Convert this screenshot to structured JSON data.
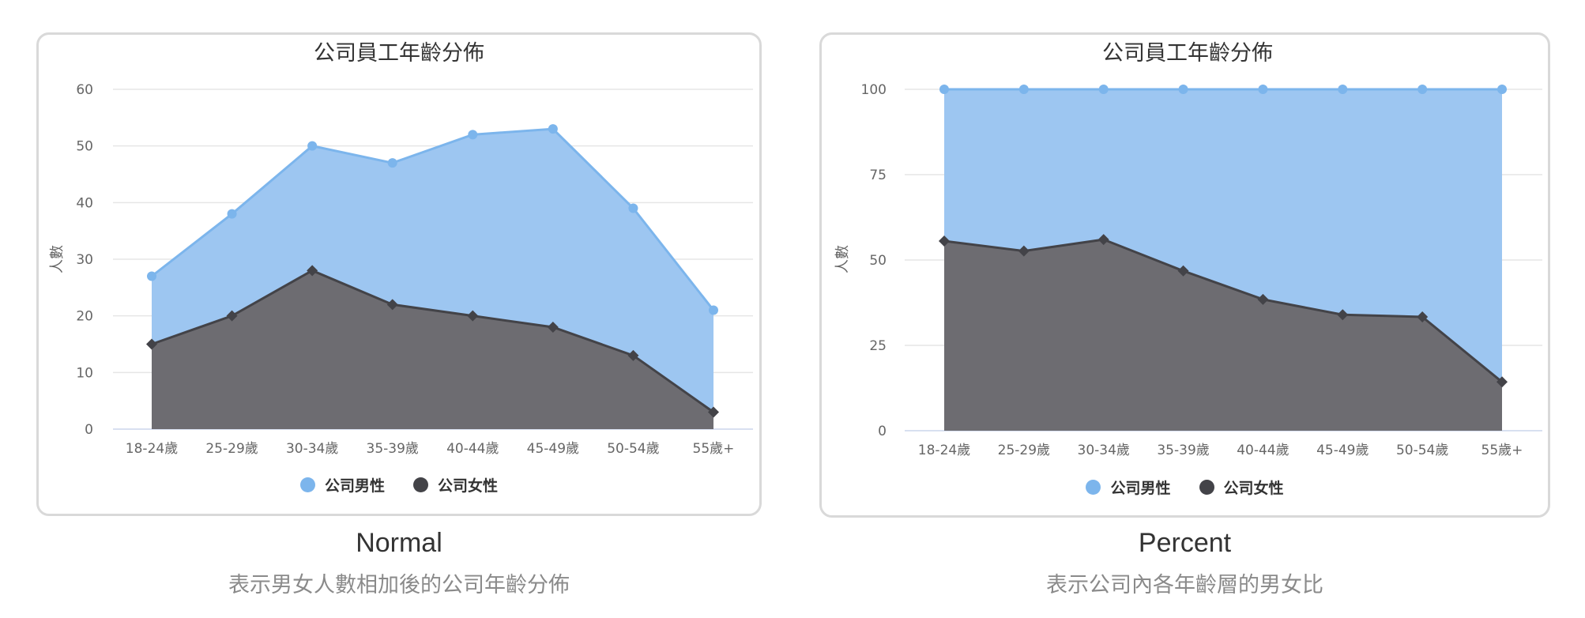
{
  "colors": {
    "male": "#7cb5ec",
    "male_fill": "#9dc6f1",
    "female": "#434348",
    "female_fill": "#6d6c71",
    "grid": "#e6e6e6",
    "axis_text": "#666666"
  },
  "panels": [
    {
      "caption_title": "Normal",
      "caption_subtitle": "表示男女人數相加後的公司年齡分佈",
      "legend": {
        "male": "公司男性",
        "female": "公司女性"
      }
    },
    {
      "caption_title": "Percent",
      "caption_subtitle": "表示公司內各年齡層的男女比",
      "legend": {
        "male": "公司男性",
        "female": "公司女性"
      }
    }
  ],
  "chart_data": [
    {
      "type": "area",
      "stacking": "normal",
      "title": "公司員工年齡分佈",
      "ylabel": "人數",
      "xlabel": "",
      "categories": [
        "18-24歲",
        "25-29歲",
        "30-34歲",
        "35-39歲",
        "40-44歲",
        "45-49歲",
        "50-54歲",
        "55歲+"
      ],
      "ylim": [
        0,
        60
      ],
      "yticks": [
        0,
        10,
        20,
        30,
        40,
        50,
        60
      ],
      "grid": true,
      "legend_position": "bottom",
      "series": [
        {
          "name": "公司男性",
          "values": [
            12,
            18,
            22,
            25,
            32,
            35,
            26,
            18
          ]
        },
        {
          "name": "公司女性",
          "values": [
            15,
            20,
            28,
            22,
            20,
            18,
            13,
            3
          ]
        }
      ]
    },
    {
      "type": "area",
      "stacking": "percent",
      "title": "公司員工年齡分佈",
      "ylabel": "人數",
      "xlabel": "",
      "categories": [
        "18-24歲",
        "25-29歲",
        "30-34歲",
        "35-39歲",
        "40-44歲",
        "45-49歲",
        "50-54歲",
        "55歲+"
      ],
      "ylim": [
        0,
        100
      ],
      "yticks": [
        0,
        25,
        50,
        75,
        100
      ],
      "grid": true,
      "legend_position": "bottom",
      "series": [
        {
          "name": "公司男性",
          "values": [
            12,
            18,
            22,
            25,
            32,
            35,
            26,
            18
          ]
        },
        {
          "name": "公司女性",
          "values": [
            15,
            20,
            28,
            22,
            20,
            18,
            13,
            3
          ]
        }
      ]
    }
  ]
}
